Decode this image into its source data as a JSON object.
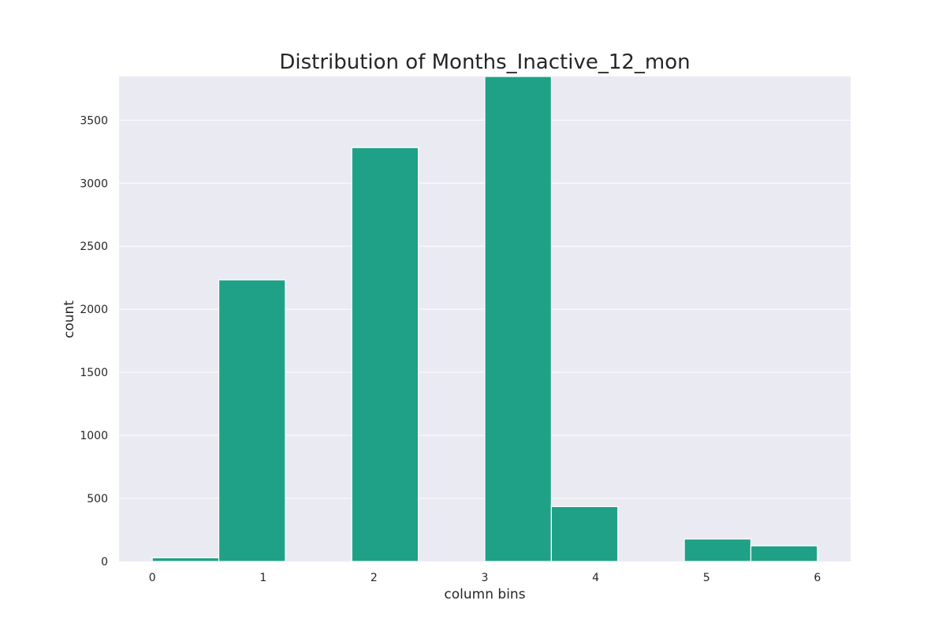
{
  "chart_data": {
    "type": "bar",
    "title": "Distribution of Months_Inactive_12_mon",
    "xlabel": "column bins",
    "ylabel": "count",
    "xlim": [
      -0.3,
      6.3
    ],
    "ylim": [
      0,
      3846
    ],
    "xticks": [
      0,
      1,
      2,
      3,
      4,
      5,
      6
    ],
    "yticks": [
      0,
      500,
      1000,
      1500,
      2000,
      2500,
      3000,
      3500
    ],
    "bin_width": 0.6,
    "bins": [
      {
        "start": 0.0,
        "end": 0.6,
        "value": 29
      },
      {
        "start": 0.6,
        "end": 1.2,
        "value": 2233
      },
      {
        "start": 1.2,
        "end": 1.8,
        "value": 0
      },
      {
        "start": 1.8,
        "end": 2.4,
        "value": 3282
      },
      {
        "start": 2.4,
        "end": 3.0,
        "value": 0
      },
      {
        "start": 3.0,
        "end": 3.6,
        "value": 3846
      },
      {
        "start": 3.6,
        "end": 4.2,
        "value": 435
      },
      {
        "start": 4.2,
        "end": 4.8,
        "value": 0
      },
      {
        "start": 4.8,
        "end": 5.4,
        "value": 178
      },
      {
        "start": 5.4,
        "end": 6.0,
        "value": 124
      }
    ],
    "grid": true,
    "colors": {
      "bar": "#1fa187",
      "plot_background": "#eaeaf2",
      "grid": "#ffffff"
    }
  }
}
